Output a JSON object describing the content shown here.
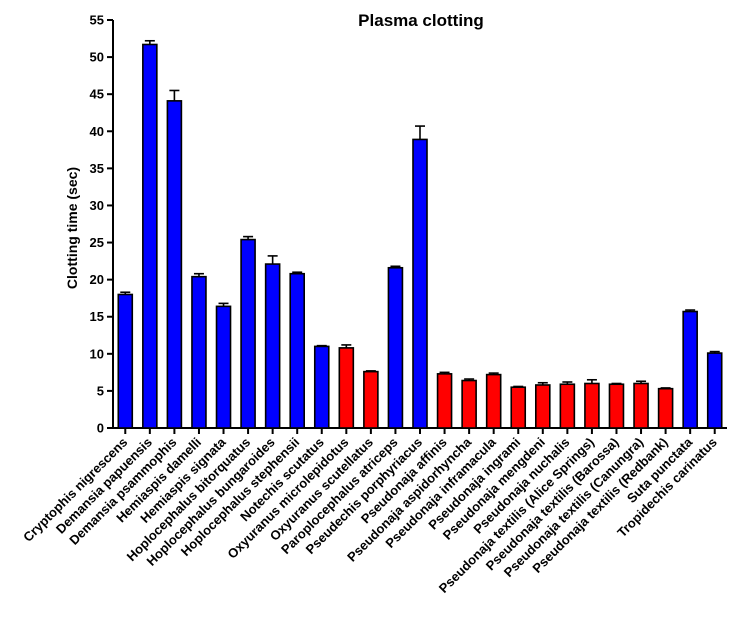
{
  "chart_data": {
    "type": "bar",
    "title": "Plasma clotting",
    "xlabel": "",
    "ylabel": "Clotting time (sec)",
    "ylim": [
      0,
      55
    ],
    "yticks": [
      0,
      5,
      10,
      15,
      20,
      25,
      30,
      35,
      40,
      45,
      50,
      55
    ],
    "grid": false,
    "legend": "none",
    "colors": {
      "blue": "#0000ff",
      "red": "#ff0000",
      "outline": "#000000"
    },
    "categories": [
      "Cryptophis nigrescens",
      "Demansia papuensis",
      "Demansia psammophis",
      "Hemiaspis damelli",
      "Hemiaspis signata",
      "Hoplocephalus bitorquatus",
      "Hoplocephalus bungaroides",
      "Hoplocephalus stephensii",
      "Notechis scutatus",
      "Oxyuranus microlepidotus",
      "Oxyuranus scutellatus",
      "Paroplocephalus atriceps",
      "Pseudechis porphyriacus",
      "Pseudonaja affinis",
      "Pseudonaja aspidorhyncha",
      "Pseudonaja inframacula",
      "Pseudonaja ingrami",
      "Pseudonaja mengdeni",
      "Pseudonaja nuchalis",
      "Pseudonaja textilis (Alice Springs)",
      "Pseudonaja textilis (Barossa)",
      "Pseudonaja textilis (Canungra)",
      "Pseudonaja textilis (Redbank)",
      "Suta punctata",
      "Tropidechis carinatus"
    ],
    "values": [
      18.0,
      51.7,
      44.1,
      20.4,
      16.4,
      25.4,
      22.1,
      20.8,
      11.0,
      10.8,
      7.6,
      21.6,
      38.9,
      7.3,
      6.4,
      7.2,
      5.5,
      5.8,
      5.9,
      6.0,
      5.9,
      6.0,
      5.3,
      15.7,
      10.1
    ],
    "errors": [
      0.3,
      0.5,
      1.4,
      0.4,
      0.4,
      0.4,
      1.1,
      0.2,
      0.1,
      0.4,
      0.1,
      0.2,
      1.8,
      0.2,
      0.2,
      0.2,
      0.1,
      0.3,
      0.3,
      0.5,
      0.1,
      0.3,
      0.1,
      0.2,
      0.2
    ],
    "bar_colors": [
      "blue",
      "blue",
      "blue",
      "blue",
      "blue",
      "blue",
      "blue",
      "blue",
      "blue",
      "red",
      "red",
      "blue",
      "blue",
      "red",
      "red",
      "red",
      "red",
      "red",
      "red",
      "red",
      "red",
      "red",
      "red",
      "blue",
      "blue"
    ]
  }
}
